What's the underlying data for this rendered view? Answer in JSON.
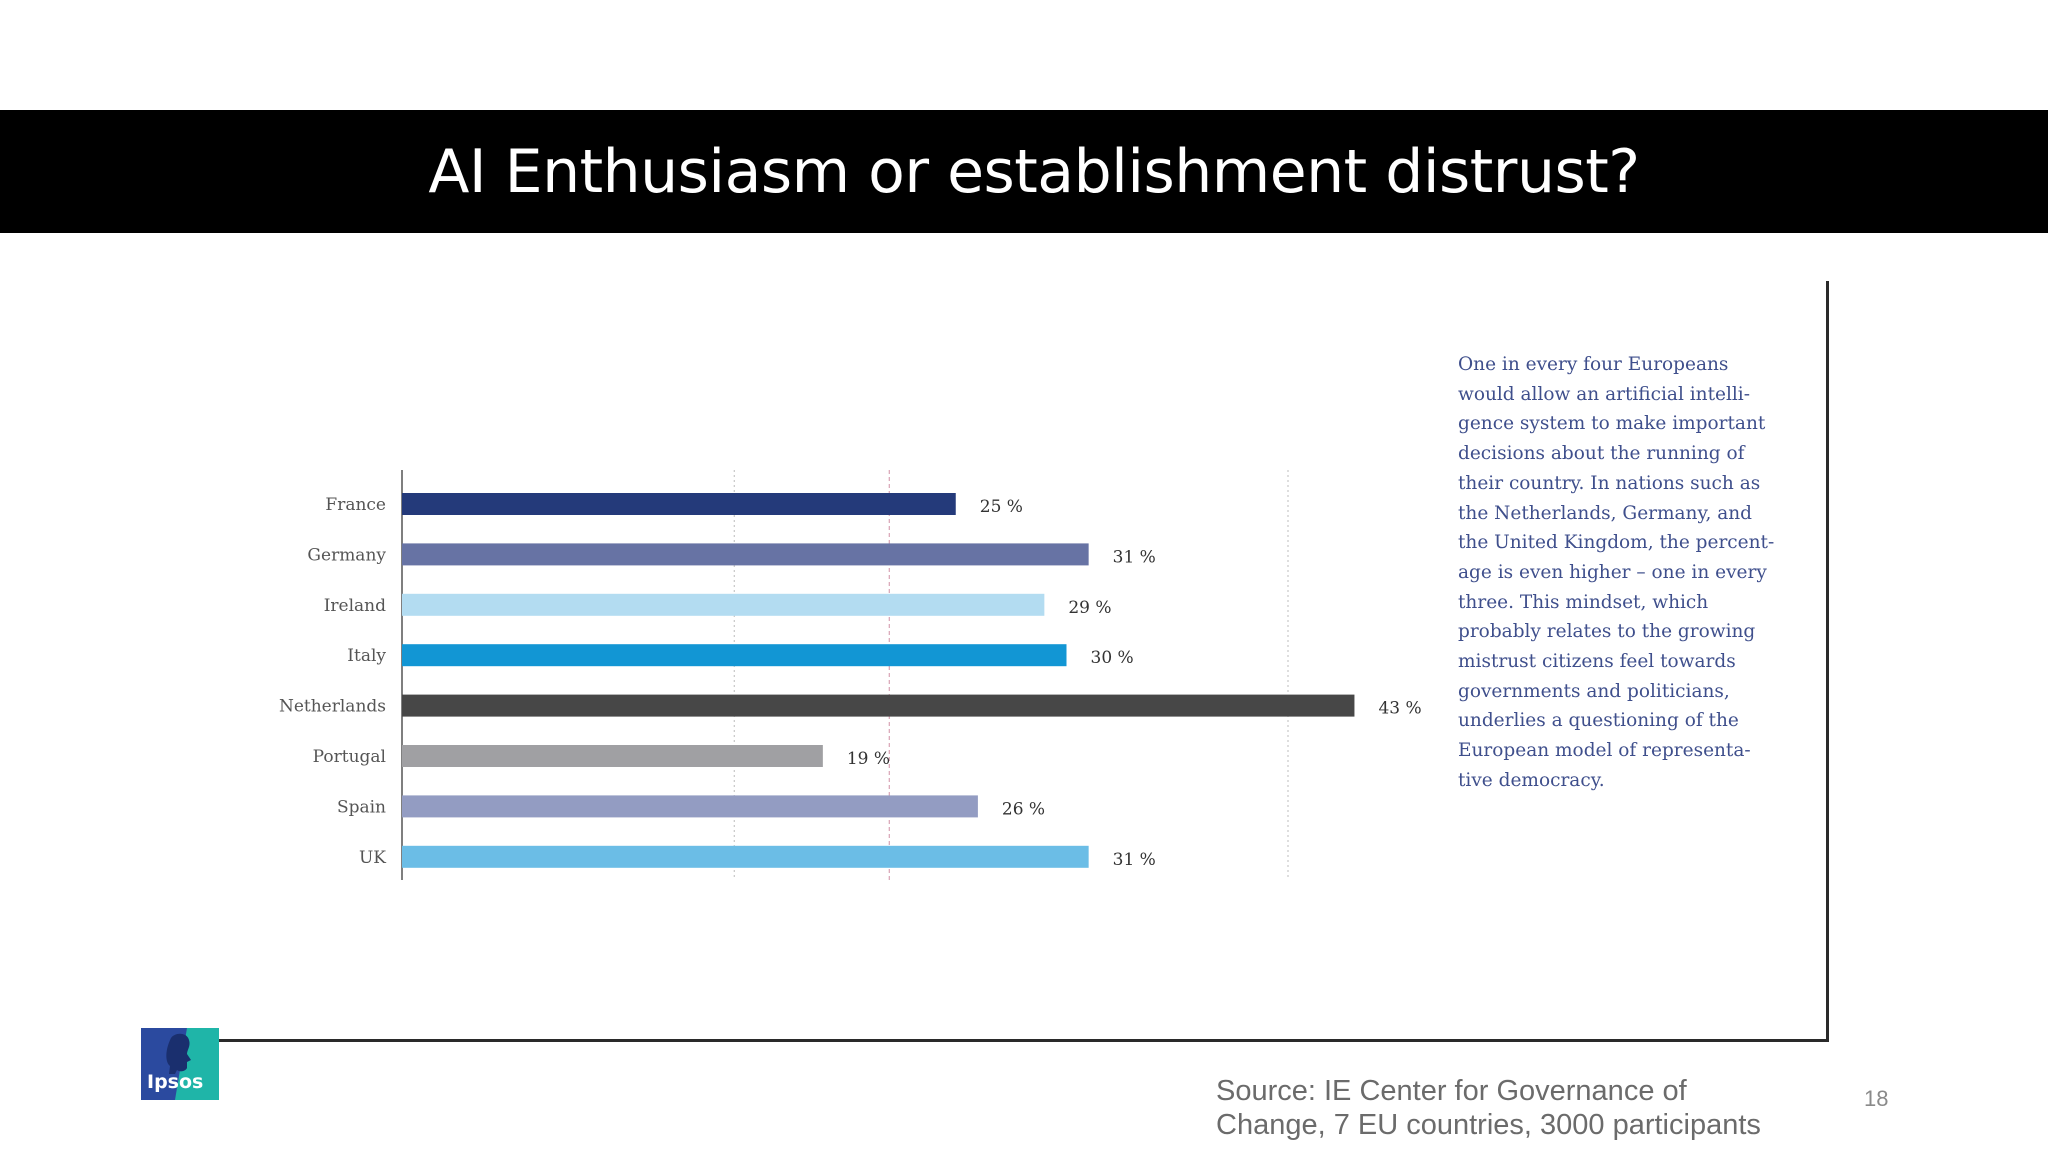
{
  "title": "AI Enthusiasm or establishment distrust?",
  "chart_data": {
    "type": "bar",
    "orientation": "horizontal",
    "categories": [
      "France",
      "Germany",
      "Ireland",
      "Italy",
      "Netherlands",
      "Portugal",
      "Spain",
      "UK"
    ],
    "values": [
      25,
      31,
      29,
      30,
      43,
      19,
      26,
      31
    ],
    "value_labels": [
      "25 %",
      "31 %",
      "29 %",
      "30 %",
      "43 %",
      "19 %",
      "26 %",
      "31 %"
    ],
    "bar_colors": [
      "#243a7a",
      "#6773a4",
      "#b3dcf1",
      "#1296d4",
      "#474747",
      "#a0a0a3",
      "#939cc2",
      "#6bbde6"
    ],
    "unit": "%",
    "xlim": [
      0,
      45
    ],
    "grid": true,
    "reference_line_color": "#d9a3b5",
    "title": "",
    "xlabel": "",
    "ylabel": ""
  },
  "annotation": {
    "lines": [
      "One in every four Europeans",
      "would allow an artificial intelli-",
      "gence system to make important",
      "decisions about the running of",
      "their country. In nations such as",
      "the Netherlands, Germany, and",
      "the United Kingdom, the percent-",
      "age is even higher – one in every",
      "three. This mindset, which",
      "probably relates to the growing",
      "mistrust citizens feel towards",
      "governments and politicians,",
      "underlies a questioning of the",
      "European model of representa-",
      "tive democracy."
    ]
  },
  "logo": {
    "text": "Ipsos",
    "colors": {
      "blue": "#2b4a9f",
      "teal": "#1fb5a8"
    }
  },
  "source": {
    "lines": [
      "Source: IE Center for Governance of",
      "Change, 7 EU countries, 3000 participants"
    ]
  },
  "page_number": "18"
}
